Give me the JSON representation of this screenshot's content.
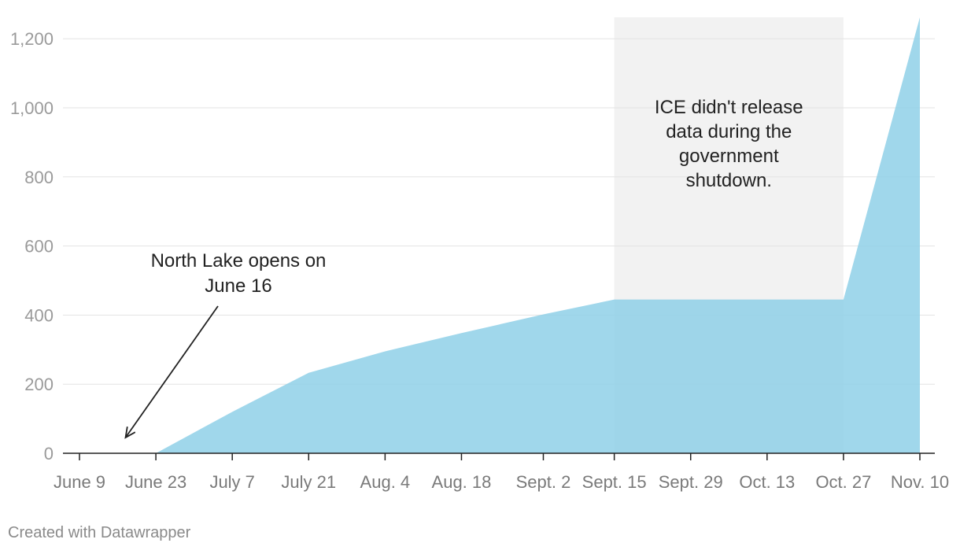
{
  "chart_data": {
    "type": "area",
    "x": [
      "2025-06-09",
      "2025-06-16",
      "2025-06-23",
      "2025-07-07",
      "2025-07-21",
      "2025-08-04",
      "2025-08-18",
      "2025-09-02",
      "2025-09-15",
      "2025-09-29",
      "2025-10-13",
      "2025-10-27",
      "2025-11-10"
    ],
    "x_tick_labels": [
      "June 9",
      "June 23",
      "July 7",
      "July 21",
      "Aug. 4",
      "Aug. 18",
      "Sept. 2",
      "Sept. 15",
      "Sept. 29",
      "Oct. 13",
      "Oct. 27",
      "Nov. 10"
    ],
    "x_ticks": [
      "2025-06-09",
      "2025-06-23",
      "2025-07-07",
      "2025-07-21",
      "2025-08-04",
      "2025-08-18",
      "2025-09-02",
      "2025-09-15",
      "2025-09-29",
      "2025-10-13",
      "2025-10-27",
      "2025-11-10"
    ],
    "series": [
      {
        "values": [
          0,
          0,
          0,
          120,
          233,
          295,
          348,
          402,
          445,
          445,
          445,
          445,
          1262
        ],
        "color": "#8fd0e7"
      }
    ],
    "ylim": [
      0,
      1262
    ],
    "y_ticks": [
      0,
      200,
      400,
      600,
      800,
      1000,
      1200
    ],
    "y_tick_labels": [
      "0",
      "200",
      "400",
      "600",
      "800",
      "1,000",
      "1,200"
    ],
    "grid": true,
    "shaded_region": {
      "x_start": "2025-09-15",
      "x_end": "2025-10-27",
      "color": "#f2f2f2"
    },
    "annotations": [
      {
        "id": "shutdown",
        "lines": [
          "ICE didn't release",
          "data during the",
          "government",
          "shutdown."
        ]
      },
      {
        "id": "north-lake",
        "lines": [
          "North Lake opens on",
          "June 16"
        ],
        "points_to": "2025-06-16"
      }
    ]
  },
  "credit": "Created with Datawrapper"
}
